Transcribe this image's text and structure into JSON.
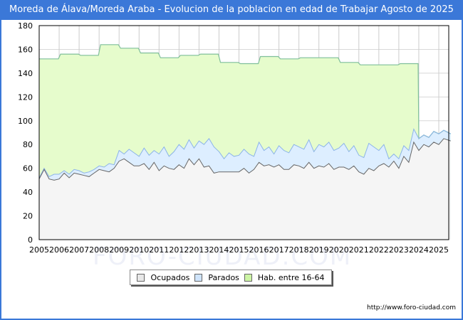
{
  "title": "Moreda de Álava/Moreda Araba - Evolucion de la poblacion en edad de Trabajar Agosto de 2025",
  "footer": "http://www.foro-ciudad.com",
  "watermark": "FORO-CIUDAD.COM",
  "colors": {
    "header_bg": "#3b78d8",
    "ocupados_fill": "#f5f5f5",
    "ocupados_line": "#666666",
    "parados_fill": "#ddeeff",
    "parados_line": "#8cb4e8",
    "hab_fill": "#e6fccc",
    "hab_line": "#7fbf9a",
    "grid": "#d8d8d8"
  },
  "legend": [
    {
      "label": "Ocupados",
      "color": "#e8e8e8"
    },
    {
      "label": "Parados",
      "color": "#cfe4fb"
    },
    {
      "label": "Hab. entre 16-64",
      "color": "#cdf5a5"
    }
  ],
  "chart_data": {
    "type": "area",
    "title": "Moreda de Álava/Moreda Araba - Evolucion de la poblacion en edad de Trabajar Agosto de 2025",
    "xlabel": "",
    "ylabel": "",
    "ylim": [
      0,
      180
    ],
    "yticks": [
      0,
      20,
      40,
      60,
      80,
      100,
      120,
      140,
      160,
      180
    ],
    "xticks": [
      "2005",
      "2006",
      "2007",
      "2008",
      "2009",
      "2010",
      "2011",
      "2012",
      "2013",
      "2014",
      "2015",
      "2016",
      "2017",
      "2018",
      "2019",
      "2020",
      "2021",
      "2022",
      "2023",
      "2024",
      "2025"
    ],
    "grid": true,
    "legend_position": "bottom",
    "x_end": 2025.6,
    "series": [
      {
        "name": "Hab. entre 16-64",
        "x": [
          2005,
          2006,
          2007,
          2008,
          2009,
          2010,
          2011,
          2012,
          2013,
          2014,
          2015,
          2016,
          2017,
          2018,
          2019,
          2020,
          2021,
          2022,
          2023,
          2024,
          2025
        ],
        "values": [
          152,
          156,
          155,
          164,
          161,
          157,
          153,
          155,
          156,
          149,
          148,
          154,
          152,
          153,
          153,
          149,
          147,
          147,
          148,
          89,
          90
        ]
      },
      {
        "name": "Parados+Ocupados (upper line)",
        "x": [
          2005,
          2005.25,
          2005.5,
          2005.75,
          2006,
          2006.25,
          2006.5,
          2006.75,
          2007,
          2007.25,
          2007.5,
          2007.75,
          2008,
          2008.25,
          2008.5,
          2008.75,
          2009,
          2009.25,
          2009.5,
          2009.75,
          2010,
          2010.25,
          2010.5,
          2010.75,
          2011,
          2011.25,
          2011.5,
          2011.75,
          2012,
          2012.25,
          2012.5,
          2012.75,
          2013,
          2013.25,
          2013.5,
          2013.75,
          2014,
          2014.25,
          2014.5,
          2014.75,
          2015,
          2015.25,
          2015.5,
          2015.75,
          2016,
          2016.25,
          2016.5,
          2016.75,
          2017,
          2017.25,
          2017.5,
          2017.75,
          2018,
          2018.25,
          2018.5,
          2018.75,
          2019,
          2019.25,
          2019.5,
          2019.75,
          2020,
          2020.25,
          2020.5,
          2020.75,
          2021,
          2021.25,
          2021.5,
          2021.75,
          2022,
          2022.25,
          2022.5,
          2022.75,
          2023,
          2023.25,
          2023.5,
          2023.75,
          2024,
          2024.25,
          2024.5,
          2024.75,
          2025,
          2025.25,
          2025.6
        ],
        "values": [
          52,
          60,
          53,
          55,
          55,
          58,
          55,
          59,
          58,
          56,
          57,
          59,
          62,
          61,
          64,
          63,
          75,
          72,
          76,
          73,
          70,
          77,
          71,
          75,
          72,
          78,
          70,
          74,
          80,
          76,
          84,
          77,
          83,
          80,
          85,
          78,
          74,
          68,
          73,
          70,
          71,
          76,
          72,
          70,
          82,
          75,
          78,
          72,
          79,
          75,
          73,
          80,
          78,
          76,
          84,
          74,
          80,
          78,
          82,
          75,
          77,
          81,
          74,
          79,
          71,
          69,
          81,
          78,
          75,
          80,
          68,
          72,
          68,
          79,
          75,
          93,
          85,
          88,
          86,
          91,
          89,
          92,
          89
        ]
      },
      {
        "name": "Ocupados",
        "x": [
          2005,
          2005.25,
          2005.5,
          2005.75,
          2006,
          2006.25,
          2006.5,
          2006.75,
          2007,
          2007.25,
          2007.5,
          2007.75,
          2008,
          2008.25,
          2008.5,
          2008.75,
          2009,
          2009.25,
          2009.5,
          2009.75,
          2010,
          2010.25,
          2010.5,
          2010.75,
          2011,
          2011.25,
          2011.5,
          2011.75,
          2012,
          2012.25,
          2012.5,
          2012.75,
          2013,
          2013.25,
          2013.5,
          2013.75,
          2014,
          2014.25,
          2014.5,
          2014.75,
          2015,
          2015.25,
          2015.5,
          2015.75,
          2016,
          2016.25,
          2016.5,
          2016.75,
          2017,
          2017.25,
          2017.5,
          2017.75,
          2018,
          2018.25,
          2018.5,
          2018.75,
          2019,
          2019.25,
          2019.5,
          2019.75,
          2020,
          2020.25,
          2020.5,
          2020.75,
          2021,
          2021.25,
          2021.5,
          2021.75,
          2022,
          2022.25,
          2022.5,
          2022.75,
          2023,
          2023.25,
          2023.5,
          2023.75,
          2024,
          2024.25,
          2024.5,
          2024.75,
          2025,
          2025.25,
          2025.6
        ],
        "values": [
          51,
          59,
          51,
          50,
          51,
          56,
          52,
          56,
          55,
          54,
          53,
          56,
          59,
          58,
          57,
          60,
          66,
          68,
          65,
          62,
          62,
          64,
          59,
          65,
          58,
          62,
          60,
          59,
          63,
          60,
          68,
          63,
          68,
          61,
          62,
          56,
          57,
          57,
          57,
          57,
          57,
          60,
          56,
          59,
          65,
          62,
          63,
          61,
          63,
          59,
          59,
          63,
          62,
          60,
          65,
          60,
          62,
          61,
          64,
          59,
          61,
          61,
          59,
          62,
          57,
          55,
          60,
          58,
          62,
          64,
          61,
          66,
          60,
          70,
          65,
          82,
          75,
          80,
          78,
          82,
          80,
          85,
          83
        ]
      }
    ]
  }
}
